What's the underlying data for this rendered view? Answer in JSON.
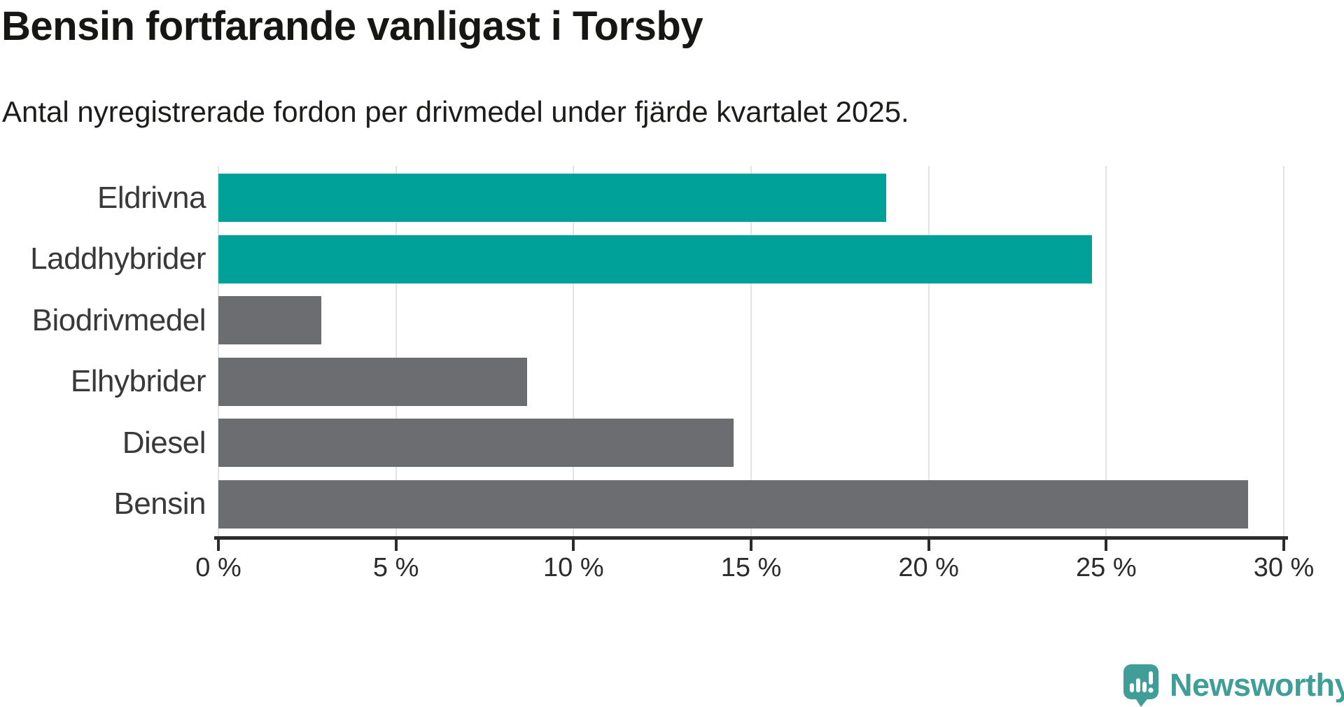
{
  "header": {
    "title": "Bensin fortfarande vanligast i Torsby",
    "subtitle": "Antal nyregistrerade fordon per drivmedel under fjärde kvartalet 2025."
  },
  "chart_data": {
    "type": "bar",
    "orientation": "horizontal",
    "categories": [
      "Eldrivna",
      "Laddhybrider",
      "Biodrivmedel",
      "Elhybrider",
      "Diesel",
      "Bensin"
    ],
    "values": [
      18.8,
      24.6,
      2.9,
      8.7,
      14.5,
      29.0
    ],
    "unit": "%",
    "series_label": "Antal nyregistrerade fordon per drivmedel, andel i procent",
    "bar_colors": [
      "#00a199",
      "#00a199",
      "#6c6d71",
      "#6c6d71",
      "#6c6d71",
      "#6c6d71"
    ],
    "highlight_color": "#00a199",
    "default_color": "#6c6d71",
    "xlim": [
      0,
      30
    ],
    "x_tick_values": [
      0,
      5,
      10,
      15,
      20,
      25,
      30
    ],
    "x_tick_labels": [
      "0 %",
      "5 %",
      "10 %",
      "15 %",
      "20 %",
      "25 %",
      "30 %"
    ],
    "grid": true,
    "legend": "none",
    "title": "Bensin fortfarande vanligast i Torsby",
    "xlabel": "",
    "ylabel": ""
  },
  "footer": {
    "brand": "Newsworthy",
    "brand_color": "#3f9f98",
    "logo_icon": "newsworthy-speech-bubble-bar-chart-icon"
  }
}
